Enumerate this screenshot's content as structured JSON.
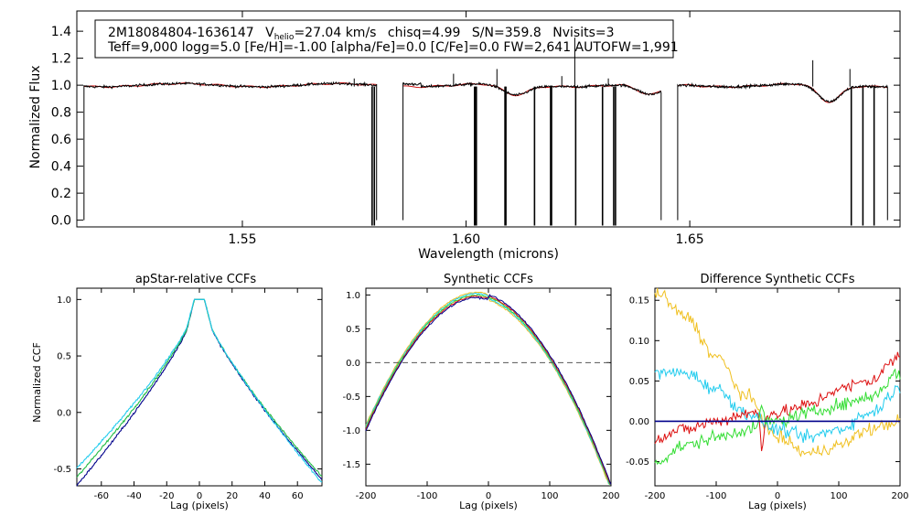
{
  "info_box": {
    "star_id": "2M18084804-1636147",
    "vhelio_label": "V",
    "vhelio_sub": "helio",
    "vhelio_value": "=27.04 km/s",
    "chisq": "chisq=4.99",
    "snr": "S/N=359.8",
    "nvisits": "Nvisits=3",
    "line2": "Teff=9,000 logg=5.0 [Fe/H]=-1.00 [alpha/Fe]=0.0 [C/Fe]=0.0 FW=2,641 AUTOFW=1,991"
  },
  "colors": {
    "observed": "#000000",
    "model": "#cc0000",
    "navy": "#00008b",
    "green": "#22bb44",
    "cyan": "#22ccee",
    "orange": "#f0c020",
    "red": "#dd1111",
    "lime": "#33dd33"
  },
  "chart_data": [
    {
      "type": "line",
      "id": "spectrum",
      "title": "",
      "xlabel": "Wavelength (microns)",
      "ylabel": "Normalized Flux",
      "xlim": [
        1.513,
        1.697
      ],
      "ylim": [
        -0.05,
        1.55
      ],
      "xticks": [
        1.55,
        1.6,
        1.65
      ],
      "xtick_labels": [
        "1.55",
        "1.60",
        "1.65"
      ],
      "yticks": [
        0.0,
        0.2,
        0.4,
        0.6,
        0.8,
        1.0,
        1.2,
        1.4
      ],
      "ytick_labels": [
        "0.0",
        "0.2",
        "0.4",
        "0.6",
        "0.8",
        "1.0",
        "1.2",
        "1.4"
      ],
      "chips": [
        [
          1.5146,
          1.58
        ],
        [
          1.5859,
          1.6436
        ],
        [
          1.6473,
          1.6942
        ]
      ],
      "absorption": [
        {
          "center": 1.611,
          "depth": 0.08,
          "width": 0.004
        },
        {
          "center": 1.6412,
          "depth": 0.08,
          "width": 0.004
        },
        {
          "center": 1.6811,
          "depth": 0.13,
          "width": 0.0035
        }
      ],
      "spikes_down": [
        1.579,
        1.5795,
        1.6019,
        1.6021,
        1.6023,
        1.6087,
        1.6089,
        1.6153,
        1.6189,
        1.6191,
        1.6245,
        1.6305,
        1.633,
        1.6334,
        1.6861,
        1.6887,
        1.6912
      ],
      "spikes_up": [
        1.575,
        1.5972,
        1.6069,
        1.6214,
        1.6243,
        1.6318,
        1.6775,
        1.6858
      ],
      "series": [
        {
          "name": "observed"
        },
        {
          "name": "model"
        }
      ]
    },
    {
      "type": "line",
      "id": "apstar_ccf",
      "title": "apStar-relative CCFs",
      "xlabel": "Lag (pixels)",
      "ylabel": "Normalized CCF",
      "xlim": [
        -75,
        75
      ],
      "ylim": [
        -0.65,
        1.1
      ],
      "xticks": [
        -60,
        -40,
        -20,
        0,
        20,
        40,
        60
      ],
      "xtick_labels": [
        "-60",
        "-40",
        "-20",
        "0",
        "20",
        "40",
        "60"
      ],
      "yticks": [
        -0.5,
        0.0,
        0.5,
        1.0
      ],
      "ytick_labels": [
        "-0.5",
        "0.0",
        "0.5",
        "1.0"
      ],
      "series": [
        {
          "name": "visit 1",
          "color": "navy",
          "min": -0.62,
          "tilt": 0.025
        },
        {
          "name": "visit 2",
          "color": "green",
          "min": -0.57,
          "tilt": 0.0
        },
        {
          "name": "visit 3",
          "color": "cyan",
          "min": -0.54,
          "tilt": -0.045
        }
      ]
    },
    {
      "type": "line",
      "id": "synthetic_ccf",
      "title": "Synthetic CCFs",
      "xlabel": "Lag (pixels)",
      "ylabel": "",
      "xlim": [
        -200,
        200
      ],
      "ylim": [
        -1.82,
        1.1
      ],
      "xticks": [
        -200,
        -100,
        0,
        100,
        200
      ],
      "xtick_labels": [
        "-200",
        "-100",
        "0",
        "100",
        "200"
      ],
      "yticks": [
        -1.5,
        -1.0,
        -0.5,
        0.0,
        0.5,
        1.0
      ],
      "ytick_labels": [
        "-1.5",
        "-1.0",
        "-0.5",
        "0.0",
        "0.5",
        "1.0"
      ],
      "reference_line": 0.0,
      "series": [
        {
          "name": "s1",
          "color": "orange"
        },
        {
          "name": "s2",
          "color": "cyan"
        },
        {
          "name": "s3",
          "color": "lime"
        },
        {
          "name": "s4",
          "color": "red"
        },
        {
          "name": "s5",
          "color": "navy"
        }
      ]
    },
    {
      "type": "line",
      "id": "difference_ccf",
      "title": "Difference Synthetic CCFs",
      "xlabel": "Lag (pixels)",
      "ylabel": "",
      "xlim": [
        -200,
        200
      ],
      "ylim": [
        -0.08,
        0.165
      ],
      "xticks": [
        -200,
        -100,
        0,
        100,
        200
      ],
      "xtick_labels": [
        "-200",
        "-100",
        "0",
        "100",
        "200"
      ],
      "yticks": [
        -0.05,
        0.0,
        0.05,
        0.1,
        0.15
      ],
      "ytick_labels": [
        "-0.05",
        "0.00",
        "0.05",
        "0.10",
        "0.15"
      ],
      "reference_line": 0.0,
      "series": [
        {
          "name": "orange",
          "color": "orange",
          "knots": [
            [
              -200,
              0.16
            ],
            [
              -150,
              0.13
            ],
            [
              -100,
              0.08
            ],
            [
              -50,
              0.03
            ],
            [
              0,
              -0.02
            ],
            [
              50,
              -0.04
            ],
            [
              100,
              -0.03
            ],
            [
              150,
              -0.01
            ],
            [
              200,
              0.0
            ]
          ]
        },
        {
          "name": "cyan",
          "color": "cyan",
          "knots": [
            [
              -200,
              0.06
            ],
            [
              -150,
              0.06
            ],
            [
              -100,
              0.04
            ],
            [
              -50,
              0.01
            ],
            [
              0,
              -0.01
            ],
            [
              50,
              -0.02
            ],
            [
              100,
              -0.01
            ],
            [
              150,
              0.01
            ],
            [
              200,
              0.04
            ]
          ]
        },
        {
          "name": "red",
          "color": "red",
          "knots": [
            [
              -200,
              -0.02
            ],
            [
              -150,
              -0.01
            ],
            [
              -100,
              0.0
            ],
            [
              -50,
              0.01
            ],
            [
              0,
              0.01
            ],
            [
              50,
              0.02
            ],
            [
              100,
              0.04
            ],
            [
              150,
              0.05
            ],
            [
              200,
              0.08
            ]
          ]
        },
        {
          "name": "green",
          "color": "lime",
          "knots": [
            [
              -200,
              -0.05
            ],
            [
              -150,
              -0.03
            ],
            [
              -100,
              -0.02
            ],
            [
              -50,
              -0.01
            ],
            [
              0,
              0.0
            ],
            [
              50,
              0.01
            ],
            [
              100,
              0.02
            ],
            [
              150,
              0.03
            ],
            [
              200,
              0.06
            ]
          ]
        },
        {
          "name": "navy",
          "color": "navy",
          "knots": [
            [
              -200,
              0.0
            ],
            [
              200,
              0.0
            ]
          ]
        }
      ]
    }
  ]
}
